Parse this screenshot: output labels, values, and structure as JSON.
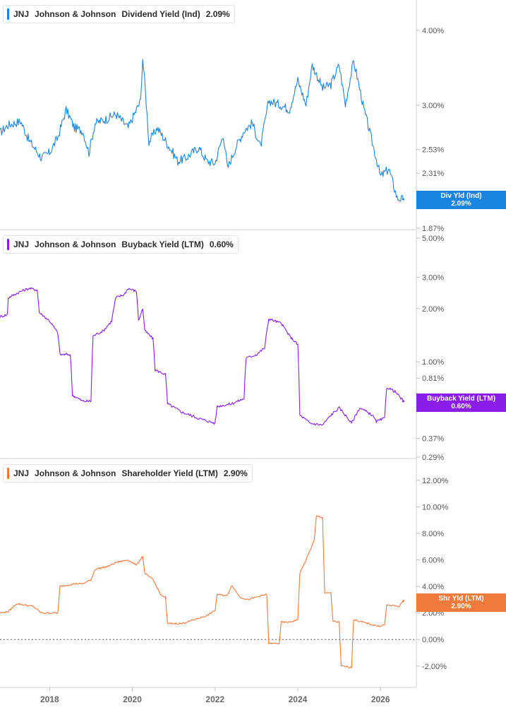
{
  "chart_data": [
    {
      "type": "line",
      "ticker": "JNJ",
      "company": "Johnson & Johnson",
      "metric": "Dividend Yield (Ind)",
      "current_value": "2.09%",
      "tag_label": "Div Yld (Ind)",
      "color": "#1a85e0",
      "y_scale": "log",
      "ylim": [
        1.87,
        4.35
      ],
      "y_ticks": [
        {
          "v": 4.0,
          "label": "4.00%"
        },
        {
          "v": 3.0,
          "label": "3.00%"
        },
        {
          "v": 2.53,
          "label": "2.53%"
        },
        {
          "v": 2.31,
          "label": "2.31%"
        },
        {
          "v": 2.09,
          "label": "2.09%"
        },
        {
          "v": 1.87,
          "label": "1.87%"
        }
      ],
      "series": [
        {
          "values": [
            [
              2016.8,
              2.7
            ],
            [
              2017.0,
              2.78
            ],
            [
              2017.3,
              2.82
            ],
            [
              2017.5,
              2.62
            ],
            [
              2017.8,
              2.45
            ],
            [
              2018.0,
              2.5
            ],
            [
              2018.2,
              2.65
            ],
            [
              2018.4,
              2.95
            ],
            [
              2018.6,
              2.75
            ],
            [
              2018.8,
              2.72
            ],
            [
              2018.95,
              2.5
            ],
            [
              2019.1,
              2.8
            ],
            [
              2019.4,
              2.85
            ],
            [
              2019.6,
              2.9
            ],
            [
              2019.9,
              2.75
            ],
            [
              2020.2,
              3.05
            ],
            [
              2020.25,
              3.6
            ],
            [
              2020.4,
              2.6
            ],
            [
              2020.6,
              2.75
            ],
            [
              2020.9,
              2.55
            ],
            [
              2021.1,
              2.42
            ],
            [
              2021.3,
              2.45
            ],
            [
              2021.6,
              2.55
            ],
            [
              2021.8,
              2.42
            ],
            [
              2022.0,
              2.4
            ],
            [
              2022.2,
              2.68
            ],
            [
              2022.3,
              2.35
            ],
            [
              2022.5,
              2.55
            ],
            [
              2022.7,
              2.72
            ],
            [
              2022.9,
              2.8
            ],
            [
              2023.1,
              2.55
            ],
            [
              2023.3,
              3.05
            ],
            [
              2023.6,
              3.0
            ],
            [
              2023.8,
              2.95
            ],
            [
              2024.0,
              3.3
            ],
            [
              2024.2,
              3.0
            ],
            [
              2024.35,
              3.5
            ],
            [
              2024.6,
              3.2
            ],
            [
              2024.8,
              3.25
            ],
            [
              2025.0,
              3.5
            ],
            [
              2025.15,
              3.0
            ],
            [
              2025.35,
              3.55
            ],
            [
              2025.6,
              2.95
            ],
            [
              2025.8,
              2.6
            ],
            [
              2026.0,
              2.28
            ],
            [
              2026.2,
              2.35
            ],
            [
              2026.4,
              2.1
            ],
            [
              2026.55,
              2.09
            ]
          ]
        }
      ],
      "x_range": [
        2016.8,
        2026.85
      ]
    },
    {
      "type": "line",
      "ticker": "JNJ",
      "company": "Johnson & Johnson",
      "metric": "Buyback Yield (LTM)",
      "current_value": "0.60%",
      "tag_label": "Buyback Yield (LTM)",
      "color": "#8a1ee8",
      "y_scale": "log",
      "ylim": [
        0.29,
        5.0
      ],
      "y_ticks": [
        {
          "v": 5.0,
          "label": "5.00%"
        },
        {
          "v": 3.0,
          "label": "3.00%"
        },
        {
          "v": 2.0,
          "label": "2.00%"
        },
        {
          "v": 1.0,
          "label": "1.00%"
        },
        {
          "v": 0.81,
          "label": "0.81%"
        },
        {
          "v": 0.6,
          "label": "0.60%"
        },
        {
          "v": 0.37,
          "label": "0.37%"
        },
        {
          "v": 0.29,
          "label": "0.29%"
        }
      ],
      "series": [
        {
          "values": [
            [
              2016.8,
              1.8
            ],
            [
              2016.98,
              1.85
            ],
            [
              2017.0,
              2.3
            ],
            [
              2017.3,
              2.5
            ],
            [
              2017.5,
              2.6
            ],
            [
              2017.7,
              2.55
            ],
            [
              2017.75,
              1.9
            ],
            [
              2018.0,
              1.7
            ],
            [
              2018.2,
              1.45
            ],
            [
              2018.25,
              1.1
            ],
            [
              2018.5,
              1.1
            ],
            [
              2018.55,
              0.65
            ],
            [
              2018.8,
              0.6
            ],
            [
              2019.0,
              0.6
            ],
            [
              2019.05,
              1.4
            ],
            [
              2019.3,
              1.5
            ],
            [
              2019.5,
              1.7
            ],
            [
              2019.6,
              2.3
            ],
            [
              2019.8,
              2.4
            ],
            [
              2019.9,
              2.6
            ],
            [
              2020.1,
              2.5
            ],
            [
              2020.15,
              1.7
            ],
            [
              2020.25,
              2.0
            ],
            [
              2020.3,
              1.5
            ],
            [
              2020.5,
              1.35
            ],
            [
              2020.55,
              0.9
            ],
            [
              2020.8,
              0.85
            ],
            [
              2020.85,
              0.58
            ],
            [
              2021.2,
              0.52
            ],
            [
              2021.6,
              0.48
            ],
            [
              2022.0,
              0.45
            ],
            [
              2022.05,
              0.56
            ],
            [
              2022.4,
              0.58
            ],
            [
              2022.7,
              0.62
            ],
            [
              2022.75,
              1.05
            ],
            [
              2023.0,
              1.1
            ],
            [
              2023.2,
              1.2
            ],
            [
              2023.3,
              1.75
            ],
            [
              2023.6,
              1.65
            ],
            [
              2023.8,
              1.4
            ],
            [
              2024.0,
              1.25
            ],
            [
              2024.05,
              0.5
            ],
            [
              2024.3,
              0.45
            ],
            [
              2024.6,
              0.44
            ],
            [
              2024.8,
              0.5
            ],
            [
              2025.0,
              0.55
            ],
            [
              2025.3,
              0.45
            ],
            [
              2025.5,
              0.55
            ],
            [
              2025.8,
              0.5
            ],
            [
              2025.9,
              0.46
            ],
            [
              2026.1,
              0.48
            ],
            [
              2026.15,
              0.72
            ],
            [
              2026.35,
              0.68
            ],
            [
              2026.55,
              0.6
            ]
          ]
        }
      ],
      "x_range": [
        2016.8,
        2026.85
      ]
    },
    {
      "type": "line",
      "ticker": "JNJ",
      "company": "Johnson & Johnson",
      "metric": "Shareholder Yield (LTM)",
      "current_value": "2.90%",
      "tag_label": "Shr Yld (LTM)",
      "color": "#f07a3c",
      "y_scale": "linear",
      "ylim": [
        -3.5,
        13.0
      ],
      "zero_line": true,
      "y_ticks": [
        {
          "v": 12,
          "label": "12.00%"
        },
        {
          "v": 10,
          "label": "10.00%"
        },
        {
          "v": 8,
          "label": "8.00%"
        },
        {
          "v": 6,
          "label": "6.00%"
        },
        {
          "v": 4,
          "label": "4.00%"
        },
        {
          "v": 2,
          "label": "2.00%"
        },
        {
          "v": 0,
          "label": "0.00%"
        },
        {
          "v": -2,
          "label": "-2.00%"
        }
      ],
      "series": [
        {
          "values": [
            [
              2016.8,
              2.0
            ],
            [
              2017.0,
              2.1
            ],
            [
              2017.2,
              2.7
            ],
            [
              2017.6,
              2.5
            ],
            [
              2017.8,
              2.0
            ],
            [
              2018.2,
              2.0
            ],
            [
              2018.25,
              4.0
            ],
            [
              2018.6,
              4.2
            ],
            [
              2018.8,
              4.2
            ],
            [
              2019.0,
              4.5
            ],
            [
              2019.1,
              5.3
            ],
            [
              2019.4,
              5.5
            ],
            [
              2019.6,
              5.8
            ],
            [
              2019.9,
              6.0
            ],
            [
              2020.1,
              5.6
            ],
            [
              2020.25,
              6.3
            ],
            [
              2020.3,
              5.0
            ],
            [
              2020.5,
              4.5
            ],
            [
              2020.7,
              3.3
            ],
            [
              2020.8,
              3.2
            ],
            [
              2020.85,
              1.2
            ],
            [
              2021.2,
              1.2
            ],
            [
              2021.5,
              1.5
            ],
            [
              2021.8,
              1.8
            ],
            [
              2022.0,
              2.2
            ],
            [
              2022.05,
              3.4
            ],
            [
              2022.3,
              3.3
            ],
            [
              2022.4,
              4.1
            ],
            [
              2022.6,
              3.2
            ],
            [
              2022.8,
              3.0
            ],
            [
              2023.0,
              3.2
            ],
            [
              2023.25,
              3.4
            ],
            [
              2023.3,
              -0.3
            ],
            [
              2023.55,
              -0.3
            ],
            [
              2023.6,
              1.3
            ],
            [
              2023.8,
              1.3
            ],
            [
              2024.0,
              1.5
            ],
            [
              2024.05,
              5.0
            ],
            [
              2024.2,
              6.0
            ],
            [
              2024.4,
              7.5
            ],
            [
              2024.45,
              9.3
            ],
            [
              2024.6,
              9.2
            ],
            [
              2024.65,
              3.5
            ],
            [
              2024.8,
              3.5
            ],
            [
              2024.85,
              1.4
            ],
            [
              2025.0,
              1.3
            ],
            [
              2025.05,
              -2.0
            ],
            [
              2025.3,
              -2.1
            ],
            [
              2025.35,
              1.5
            ],
            [
              2025.7,
              1.2
            ],
            [
              2025.95,
              1.0
            ],
            [
              2026.1,
              1.1
            ],
            [
              2026.15,
              2.6
            ],
            [
              2026.45,
              2.5
            ],
            [
              2026.55,
              2.9
            ]
          ]
        }
      ],
      "x_range": [
        2016.8,
        2026.85
      ]
    }
  ],
  "x_axis": {
    "ticks": [
      {
        "v": 2018,
        "label": "2018"
      },
      {
        "v": 2020,
        "label": "2020"
      },
      {
        "v": 2022,
        "label": "2022"
      },
      {
        "v": 2024,
        "label": "2024"
      },
      {
        "v": 2026,
        "label": "2026"
      }
    ]
  }
}
